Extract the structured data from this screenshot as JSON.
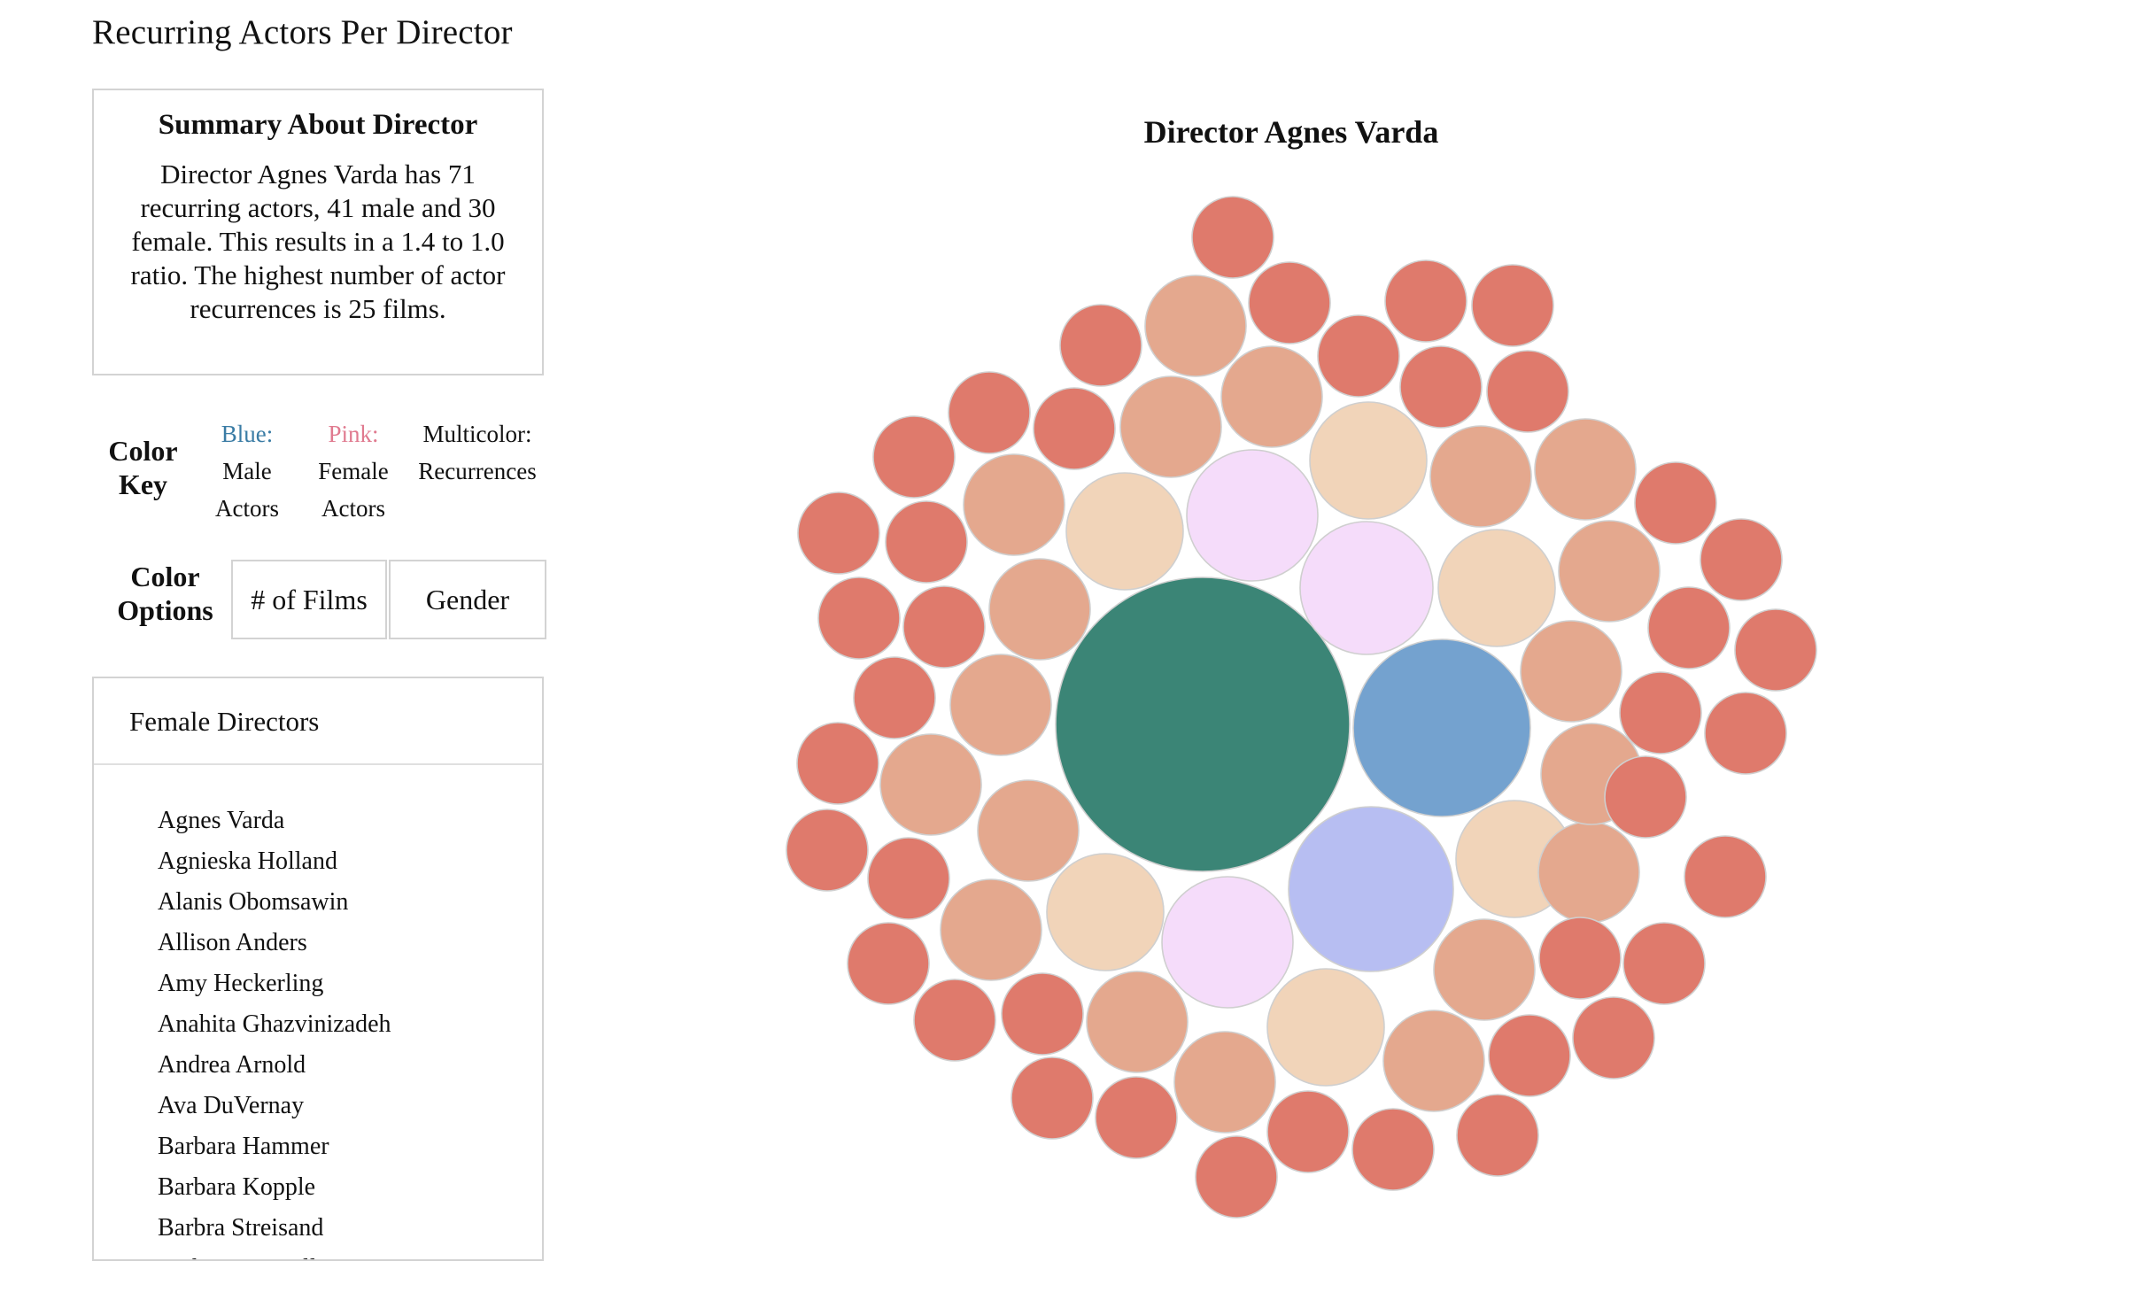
{
  "page_title": "Recurring Actors Per Director",
  "summary": {
    "heading": "Summary About Director",
    "text": "Director Agnes Varda has 71 recurring actors, 41 male and 30 female. This results in a 1.4 to 1.0 ratio. The highest number of actor recurrences is 25 films."
  },
  "color_key": {
    "label": "Color Key",
    "male": {
      "title": "Blue:",
      "line1": "Male",
      "line2": "Actors",
      "color": "#3a7ca5"
    },
    "female": {
      "title": "Pink:",
      "line1": "Female",
      "line2": "Actors",
      "color": "#e07a8f"
    },
    "multi": {
      "title": "Multicolor:",
      "line1": "Recurrences"
    }
  },
  "color_options": {
    "label": "Color Options",
    "films_label": "# of Films",
    "gender_label": "Gender"
  },
  "directors": {
    "header": "Female Directors",
    "items": [
      "Agnes Varda",
      "Agnieska Holland",
      "Alanis Obomsawin",
      "Allison Anders",
      "Amy Heckerling",
      "Anahita Ghazvinizadeh",
      "Andrea Arnold",
      "Ava DuVernay",
      "Barbara Hammer",
      "Barbara Kopple",
      "Barbra Streisand",
      "Catherine Breillat"
    ]
  },
  "chart_data": {
    "type": "bubble",
    "title": "Director Agnes Varda",
    "palette": {
      "red": "#df7a6c",
      "salmon": "#e4a88e",
      "peach": "#f1d4b9",
      "lilac": "#f5dcfa",
      "periwinkle": "#b7bef2",
      "blue": "#74a2cf",
      "teal": "#3b8576"
    }
  }
}
